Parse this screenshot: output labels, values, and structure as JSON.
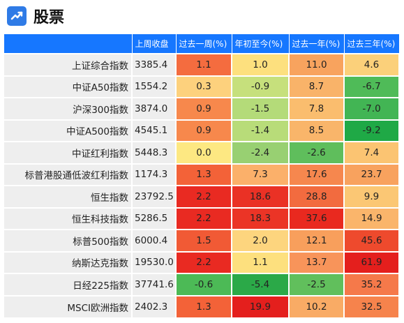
{
  "header": {
    "title": "股票",
    "icon": "trend-chart-icon"
  },
  "table": {
    "columns": [
      "",
      "上周收盘",
      "过去一周(%)",
      "年初至今(%)",
      "过去一年(%)",
      "过去三年(%)"
    ],
    "rows": [
      {
        "name": "上证综合指数",
        "close": "3385.4",
        "w": "1.1",
        "ytd": "1.0",
        "y1": "11.0",
        "y3": "4.6",
        "colors": [
          "#f46c3f",
          "#fde07e",
          "#f8a35e",
          "#fbd07a"
        ]
      },
      {
        "name": "中证A50指数",
        "close": "1554.2",
        "w": "0.3",
        "ytd": "-0.9",
        "y1": "8.7",
        "y3": "-6.7",
        "colors": [
          "#fdd17d",
          "#c6e07c",
          "#f9b369",
          "#4fbb58"
        ]
      },
      {
        "name": "沪深300指数",
        "close": "3874.0",
        "w": "0.9",
        "ytd": "-1.5",
        "y1": "7.8",
        "y3": "-7.0",
        "colors": [
          "#f7884c",
          "#b4db79",
          "#fabd6e",
          "#42b554"
        ]
      },
      {
        "name": "中证A500指数",
        "close": "4545.1",
        "w": "0.9",
        "ytd": "-1.4",
        "y1": "8.5",
        "y3": "-9.2",
        "colors": [
          "#f7884c",
          "#b8dc79",
          "#f9b56a",
          "#1fa946"
        ]
      },
      {
        "name": "中证红利指数",
        "close": "5448.3",
        "w": "0.0",
        "ytd": "-2.4",
        "y1": "-2.6",
        "y3": "7.4",
        "colors": [
          "#fde882",
          "#98d072",
          "#5fbe5c",
          "#fbc472"
        ]
      },
      {
        "name": "标普港股通低波红利指数",
        "close": "1174.3",
        "w": "1.3",
        "ytd": "7.3",
        "y1": "17.6",
        "y3": "23.7",
        "colors": [
          "#f36238",
          "#fbb06a",
          "#f6874e",
          "#f8a25e"
        ]
      },
      {
        "name": "恒生指数",
        "close": "23792.5",
        "w": "2.2",
        "ytd": "18.6",
        "y1": "28.8",
        "y3": "9.9",
        "colors": [
          "#e92a22",
          "#ea3125",
          "#f26b3f",
          "#fbc774"
        ]
      },
      {
        "name": "恒生科技指数",
        "close": "5286.5",
        "w": "2.2",
        "ytd": "18.3",
        "y1": "37.6",
        "y3": "14.9",
        "colors": [
          "#e92a22",
          "#eb3426",
          "#e9291f",
          "#fab56b"
        ]
      },
      {
        "name": "标普500指数",
        "close": "6000.4",
        "w": "1.5",
        "ytd": "2.0",
        "y1": "12.1",
        "y3": "45.6",
        "colors": [
          "#f15a35",
          "#fdd57e",
          "#f89f5c",
          "#ee4a2d"
        ]
      },
      {
        "name": "纳斯达克指数",
        "close": "19530.0",
        "w": "2.2",
        "ytd": "1.1",
        "y1": "13.7",
        "y3": "61.9",
        "colors": [
          "#e92a22",
          "#fde07e",
          "#f8945a",
          "#e41f1d"
        ]
      },
      {
        "name": "日经225指数",
        "close": "37741.6",
        "w": "-0.6",
        "ytd": "-5.4",
        "y1": "-2.5",
        "y3": "35.2",
        "colors": [
          "#4cba56",
          "#2ba948",
          "#61bf5c",
          "#f5794a"
        ]
      },
      {
        "name": "MSCI欧洲指数",
        "close": "2402.3",
        "w": "1.3",
        "ytd": "19.9",
        "y1": "10.2",
        "y3": "32.5",
        "colors": [
          "#f36238",
          "#e41f1d",
          "#f9ab65",
          "#f6834c"
        ]
      }
    ]
  }
}
